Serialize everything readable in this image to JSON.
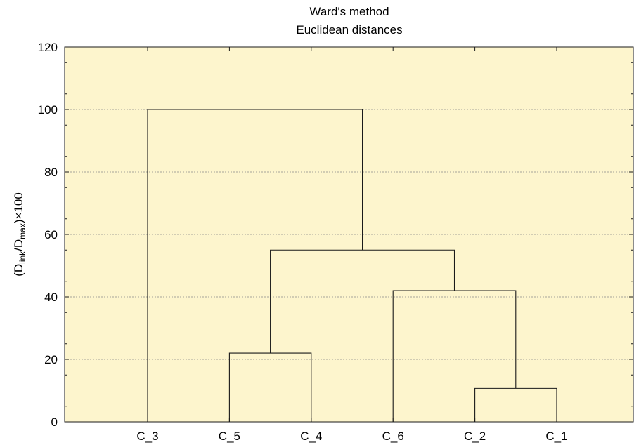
{
  "chart_data": {
    "type": "dendrogram",
    "title": "Ward's method",
    "subtitle": "Euclidean distances",
    "ylabel": {
      "prefix": "(D",
      "sub1": "link",
      "mid": "/D",
      "sub2": "max",
      "suffix": ")×100"
    },
    "xlabel": "",
    "ylim": [
      0,
      120
    ],
    "yticks": [
      "0",
      "20",
      "40",
      "60",
      "80",
      "100",
      "120"
    ],
    "grid": "horizontal-dashed",
    "leaves": [
      "C_3",
      "C_5",
      "C_4",
      "C_6",
      "C_2",
      "C_1"
    ],
    "merges": [
      {
        "left": "C_2",
        "right": "C_1",
        "height": 10.7
      },
      {
        "left": "C_5",
        "right": "C_4",
        "height": 22
      },
      {
        "left": "C_6",
        "right": "C_2+C_1",
        "height": 42
      },
      {
        "left": "C_5+C_4",
        "right": "C_6+C_2+C_1",
        "height": 55
      },
      {
        "left": "C_3",
        "right": "C_5+C_4+C_6+C_2+C_1",
        "height": 100
      }
    ],
    "colors": {
      "plot_background": "#fdf5cd",
      "line": "#1a1a1a",
      "grid": "#888888"
    }
  }
}
